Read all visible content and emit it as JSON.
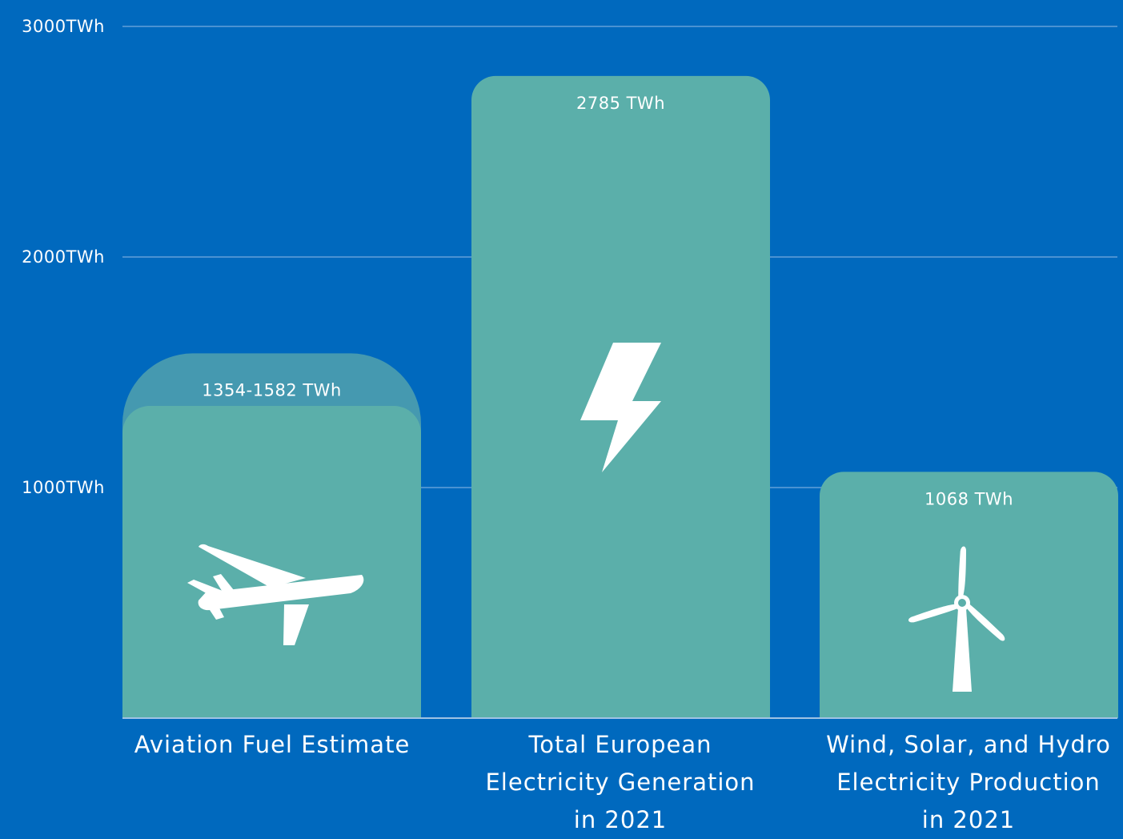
{
  "chart_data": {
    "type": "bar",
    "categories": [
      "Aviation Fuel Estimate",
      "Total European Electricity Generation in 2021",
      "Wind, Solar, and Hydro Electricity Production in 2021"
    ],
    "category_lines": [
      [
        "Aviation Fuel Estimate"
      ],
      [
        "Total European",
        "Electricity Generation",
        "in 2021"
      ],
      [
        "Wind, Solar, and Hydro",
        "Electricity Production",
        "in 2021"
      ]
    ],
    "values": [
      {
        "low": 1354,
        "high": 1582,
        "label": "1354-1582 TWh",
        "icon": "airplane-icon"
      },
      {
        "value": 2785,
        "label": "2785 TWh",
        "icon": "lightning-bolt-icon"
      },
      {
        "value": 1068,
        "label": "1068 TWh",
        "icon": "wind-turbine-icon"
      }
    ],
    "yticks": [
      1000,
      2000,
      3000
    ],
    "ytick_labels": [
      "1000TWh",
      "2000TWh",
      "3000TWh"
    ],
    "ylim": [
      0,
      3000
    ],
    "grid": true,
    "unit": "TWh"
  },
  "colors": {
    "background": "#0069BE",
    "bar": "#5BAFAA",
    "range_band": "#4599B0",
    "gridline": "#4A92D2",
    "text": "#FFFFFF"
  }
}
